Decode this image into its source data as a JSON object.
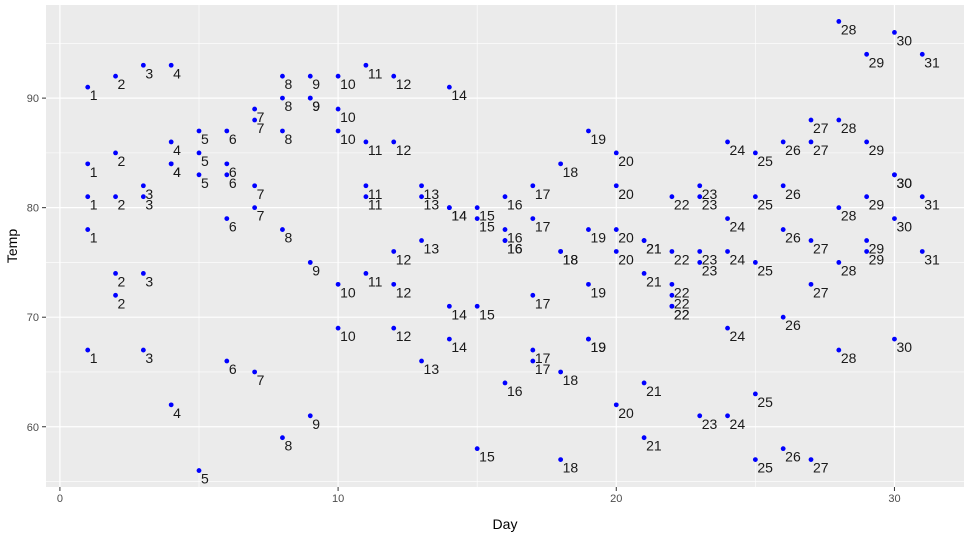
{
  "chart_data": {
    "type": "scatter",
    "title": "",
    "xlabel": "Day",
    "ylabel": "Temp",
    "xlim": [
      -0.5,
      32.5
    ],
    "ylim": [
      54.5,
      98.5
    ],
    "x_ticks": [
      0,
      10,
      20,
      30
    ],
    "y_ticks": [
      60,
      70,
      80,
      90
    ],
    "grid": true,
    "point_color": "#0000ff",
    "label_color": "#1a1a1a",
    "panel_color": "#ebebeb",
    "grid_color": "#ffffff",
    "points": [
      {
        "x": 1,
        "y": 91
      },
      {
        "x": 1,
        "y": 84
      },
      {
        "x": 1,
        "y": 81
      },
      {
        "x": 1,
        "y": 78
      },
      {
        "x": 1,
        "y": 67
      },
      {
        "x": 2,
        "y": 92
      },
      {
        "x": 2,
        "y": 85
      },
      {
        "x": 2,
        "y": 81
      },
      {
        "x": 2,
        "y": 74
      },
      {
        "x": 2,
        "y": 72
      },
      {
        "x": 3,
        "y": 93
      },
      {
        "x": 3,
        "y": 82
      },
      {
        "x": 3,
        "y": 81
      },
      {
        "x": 3,
        "y": 74
      },
      {
        "x": 3,
        "y": 67
      },
      {
        "x": 4,
        "y": 93
      },
      {
        "x": 4,
        "y": 86
      },
      {
        "x": 4,
        "y": 84
      },
      {
        "x": 4,
        "y": 84
      },
      {
        "x": 4,
        "y": 62
      },
      {
        "x": 5,
        "y": 87
      },
      {
        "x": 5,
        "y": 85
      },
      {
        "x": 5,
        "y": 83
      },
      {
        "x": 5,
        "y": 56
      },
      {
        "x": 6,
        "y": 87
      },
      {
        "x": 6,
        "y": 84
      },
      {
        "x": 6,
        "y": 83
      },
      {
        "x": 6,
        "y": 79
      },
      {
        "x": 6,
        "y": 66
      },
      {
        "x": 7,
        "y": 89
      },
      {
        "x": 7,
        "y": 88
      },
      {
        "x": 7,
        "y": 82
      },
      {
        "x": 7,
        "y": 80
      },
      {
        "x": 7,
        "y": 65
      },
      {
        "x": 8,
        "y": 92
      },
      {
        "x": 8,
        "y": 90
      },
      {
        "x": 8,
        "y": 87
      },
      {
        "x": 8,
        "y": 78
      },
      {
        "x": 8,
        "y": 59
      },
      {
        "x": 9,
        "y": 92
      },
      {
        "x": 9,
        "y": 90
      },
      {
        "x": 9,
        "y": 90
      },
      {
        "x": 9,
        "y": 75
      },
      {
        "x": 9,
        "y": 61
      },
      {
        "x": 10,
        "y": 92
      },
      {
        "x": 10,
        "y": 89
      },
      {
        "x": 10,
        "y": 87
      },
      {
        "x": 10,
        "y": 73
      },
      {
        "x": 10,
        "y": 69
      },
      {
        "x": 11,
        "y": 93
      },
      {
        "x": 11,
        "y": 86
      },
      {
        "x": 11,
        "y": 82
      },
      {
        "x": 11,
        "y": 81
      },
      {
        "x": 11,
        "y": 74
      },
      {
        "x": 12,
        "y": 92
      },
      {
        "x": 12,
        "y": 86
      },
      {
        "x": 12,
        "y": 76
      },
      {
        "x": 12,
        "y": 73
      },
      {
        "x": 12,
        "y": 69
      },
      {
        "x": 13,
        "y": 82
      },
      {
        "x": 13,
        "y": 81
      },
      {
        "x": 13,
        "y": 77
      },
      {
        "x": 13,
        "y": 66
      },
      {
        "x": 14,
        "y": 91
      },
      {
        "x": 14,
        "y": 80
      },
      {
        "x": 14,
        "y": 80
      },
      {
        "x": 14,
        "y": 71
      },
      {
        "x": 14,
        "y": 68
      },
      {
        "x": 15,
        "y": 80
      },
      {
        "x": 15,
        "y": 79
      },
      {
        "x": 15,
        "y": 71
      },
      {
        "x": 15,
        "y": 58
      },
      {
        "x": 16,
        "y": 81
      },
      {
        "x": 16,
        "y": 78
      },
      {
        "x": 16,
        "y": 77
      },
      {
        "x": 16,
        "y": 77
      },
      {
        "x": 16,
        "y": 64
      },
      {
        "x": 17,
        "y": 82
      },
      {
        "x": 17,
        "y": 79
      },
      {
        "x": 17,
        "y": 72
      },
      {
        "x": 17,
        "y": 67
      },
      {
        "x": 17,
        "y": 66
      },
      {
        "x": 18,
        "y": 84
      },
      {
        "x": 18,
        "y": 76
      },
      {
        "x": 18,
        "y": 76
      },
      {
        "x": 18,
        "y": 65
      },
      {
        "x": 18,
        "y": 57
      },
      {
        "x": 19,
        "y": 87
      },
      {
        "x": 19,
        "y": 78
      },
      {
        "x": 19,
        "y": 73
      },
      {
        "x": 19,
        "y": 68
      },
      {
        "x": 19,
        "y": 68
      },
      {
        "x": 20,
        "y": 85
      },
      {
        "x": 20,
        "y": 82
      },
      {
        "x": 20,
        "y": 78
      },
      {
        "x": 20,
        "y": 76
      },
      {
        "x": 20,
        "y": 62
      },
      {
        "x": 21,
        "y": 77
      },
      {
        "x": 21,
        "y": 77
      },
      {
        "x": 21,
        "y": 74
      },
      {
        "x": 21,
        "y": 64
      },
      {
        "x": 21,
        "y": 59
      },
      {
        "x": 22,
        "y": 81
      },
      {
        "x": 22,
        "y": 76
      },
      {
        "x": 22,
        "y": 73
      },
      {
        "x": 22,
        "y": 72
      },
      {
        "x": 22,
        "y": 71
      },
      {
        "x": 22,
        "y": 71
      },
      {
        "x": 23,
        "y": 82
      },
      {
        "x": 23,
        "y": 81
      },
      {
        "x": 23,
        "y": 76
      },
      {
        "x": 23,
        "y": 75
      },
      {
        "x": 23,
        "y": 61
      },
      {
        "x": 24,
        "y": 86
      },
      {
        "x": 24,
        "y": 79
      },
      {
        "x": 24,
        "y": 76
      },
      {
        "x": 24,
        "y": 69
      },
      {
        "x": 24,
        "y": 61
      },
      {
        "x": 25,
        "y": 85
      },
      {
        "x": 25,
        "y": 81
      },
      {
        "x": 25,
        "y": 75
      },
      {
        "x": 25,
        "y": 63
      },
      {
        "x": 25,
        "y": 57
      },
      {
        "x": 26,
        "y": 86
      },
      {
        "x": 26,
        "y": 82
      },
      {
        "x": 26,
        "y": 78
      },
      {
        "x": 26,
        "y": 70
      },
      {
        "x": 26,
        "y": 58
      },
      {
        "x": 27,
        "y": 88
      },
      {
        "x": 27,
        "y": 86
      },
      {
        "x": 27,
        "y": 77
      },
      {
        "x": 27,
        "y": 73
      },
      {
        "x": 27,
        "y": 57
      },
      {
        "x": 28,
        "y": 97
      },
      {
        "x": 28,
        "y": 88
      },
      {
        "x": 28,
        "y": 80
      },
      {
        "x": 28,
        "y": 75
      },
      {
        "x": 28,
        "y": 67
      },
      {
        "x": 29,
        "y": 94
      },
      {
        "x": 29,
        "y": 86
      },
      {
        "x": 29,
        "y": 81
      },
      {
        "x": 29,
        "y": 77
      },
      {
        "x": 29,
        "y": 76
      },
      {
        "x": 30,
        "y": 96
      },
      {
        "x": 30,
        "y": 83
      },
      {
        "x": 30,
        "y": 83
      },
      {
        "x": 30,
        "y": 79
      },
      {
        "x": 30,
        "y": 68
      },
      {
        "x": 31,
        "y": 94
      },
      {
        "x": 31,
        "y": 81
      },
      {
        "x": 31,
        "y": 76
      }
    ]
  }
}
